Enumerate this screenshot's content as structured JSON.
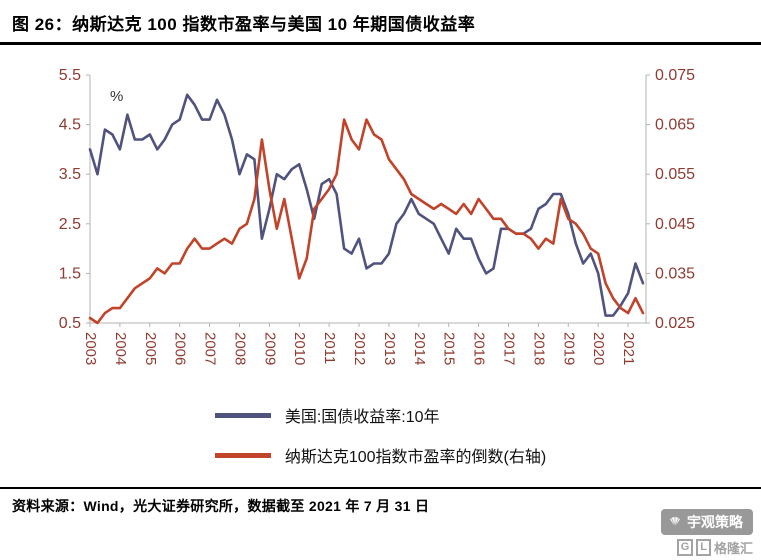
{
  "header": {
    "title": "图 26：纳斯达克 100 指数市盈率与美国 10 年期国债收益率"
  },
  "chart_data": {
    "type": "line",
    "title": "纳斯达克 100 指数市盈率与美国 10 年期国债收益率",
    "percent_label": "%",
    "grid": false,
    "legend_position": "bottom",
    "axis_label_color": "#8f3b32",
    "axis_line_color": "#b3b3b3",
    "x_tick_labels": [
      "2003",
      "2004",
      "2005",
      "2006",
      "2007",
      "2008",
      "2009",
      "2010",
      "2011",
      "2012",
      "2013",
      "2014",
      "2015",
      "2016",
      "2017",
      "2018",
      "2019",
      "2020",
      "2021"
    ],
    "left_axis": {
      "min": 0.5,
      "max": 5.5,
      "ticks": [
        "5.5",
        "4.5",
        "3.5",
        "2.5",
        "1.5",
        "0.5"
      ],
      "unit": "%"
    },
    "right_axis": {
      "min": 0.025,
      "max": 0.075,
      "ticks": [
        "0.075",
        "0.065",
        "0.055",
        "0.045",
        "0.035",
        "0.025"
      ]
    },
    "x": [
      2003,
      2003.25,
      2003.5,
      2003.75,
      2004,
      2004.25,
      2004.5,
      2004.75,
      2005,
      2005.25,
      2005.5,
      2005.75,
      2006,
      2006.25,
      2006.5,
      2006.75,
      2007,
      2007.25,
      2007.5,
      2007.75,
      2008,
      2008.25,
      2008.5,
      2008.75,
      2009,
      2009.25,
      2009.5,
      2009.75,
      2010,
      2010.25,
      2010.5,
      2010.75,
      2011,
      2011.25,
      2011.5,
      2011.75,
      2012,
      2012.25,
      2012.5,
      2012.75,
      2013,
      2013.25,
      2013.5,
      2013.75,
      2014,
      2014.25,
      2014.5,
      2014.75,
      2015,
      2015.25,
      2015.5,
      2015.75,
      2016,
      2016.25,
      2016.5,
      2016.75,
      2017,
      2017.25,
      2017.5,
      2017.75,
      2018,
      2018.25,
      2018.5,
      2018.75,
      2019,
      2019.25,
      2019.5,
      2019.75,
      2020,
      2020.25,
      2020.5,
      2020.75,
      2021,
      2021.25,
      2021.5
    ],
    "series": [
      {
        "name": "美国:国债收益率:10年",
        "axis": "left",
        "color": "#50537e",
        "values": [
          4.0,
          3.5,
          4.4,
          4.3,
          4.0,
          4.7,
          4.2,
          4.2,
          4.3,
          4.0,
          4.2,
          4.5,
          4.6,
          5.1,
          4.9,
          4.6,
          4.6,
          5.0,
          4.7,
          4.2,
          3.5,
          3.9,
          3.8,
          2.2,
          2.8,
          3.5,
          3.4,
          3.6,
          3.7,
          3.2,
          2.6,
          3.3,
          3.4,
          3.1,
          2.0,
          1.9,
          2.2,
          1.6,
          1.7,
          1.7,
          1.9,
          2.5,
          2.7,
          3.0,
          2.7,
          2.6,
          2.5,
          2.2,
          1.9,
          2.4,
          2.2,
          2.2,
          1.8,
          1.5,
          1.6,
          2.4,
          2.4,
          2.3,
          2.3,
          2.4,
          2.8,
          2.9,
          3.1,
          3.1,
          2.7,
          2.1,
          1.7,
          1.9,
          1.5,
          0.65,
          0.65,
          0.85,
          1.1,
          1.7,
          1.3
        ]
      },
      {
        "name": "纳斯达克100指数市盈率的倒数(右轴)",
        "axis": "right",
        "color": "#c1432a",
        "values": [
          0.026,
          0.025,
          0.027,
          0.028,
          0.028,
          0.03,
          0.032,
          0.033,
          0.034,
          0.036,
          0.035,
          0.037,
          0.037,
          0.04,
          0.042,
          0.04,
          0.04,
          0.041,
          0.042,
          0.041,
          0.044,
          0.045,
          0.05,
          0.062,
          0.052,
          0.044,
          0.05,
          0.042,
          0.034,
          0.038,
          0.048,
          0.05,
          0.052,
          0.055,
          0.066,
          0.062,
          0.06,
          0.066,
          0.063,
          0.062,
          0.058,
          0.056,
          0.054,
          0.051,
          0.05,
          0.049,
          0.048,
          0.049,
          0.048,
          0.047,
          0.049,
          0.047,
          0.05,
          0.048,
          0.046,
          0.046,
          0.044,
          0.043,
          0.043,
          0.042,
          0.04,
          0.042,
          0.041,
          0.05,
          0.046,
          0.045,
          0.043,
          0.04,
          0.039,
          0.033,
          0.03,
          0.028,
          0.027,
          0.03,
          0.027
        ]
      }
    ]
  },
  "footer": {
    "source": "资料来源：Wind，光大证券研究所，数据截至 2021 年 7 月 31 日"
  },
  "watermark": {
    "name": "宇观策略",
    "logo_g": "G",
    "logo_l": "L",
    "brand": "格隆汇"
  }
}
